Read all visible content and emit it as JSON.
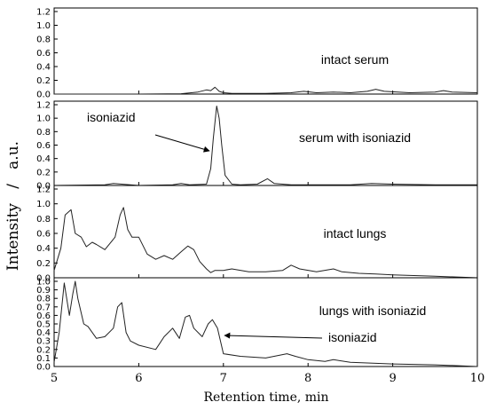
{
  "chart_data": {
    "type": "line",
    "xlabel": "Retention time, min",
    "ylabel": "Intensity   /   a.u.",
    "xlim": [
      5,
      10
    ],
    "x_ticks": [
      "5",
      "6",
      "7",
      "8",
      "9",
      "10"
    ],
    "panels": [
      {
        "label": "intact serum",
        "ylim": [
          0,
          1.2
        ],
        "y_ticks": [
          "0.0",
          "0.2",
          "0.4",
          "0.6",
          "0.8",
          "1.0",
          "1.2"
        ],
        "series": [
          {
            "x": [
              5.0,
              6.0,
              6.5,
              6.7,
              6.8,
              6.85,
              6.9,
              6.95,
              7.0,
              7.1,
              7.5,
              7.8,
              7.95,
              8.1,
              8.3,
              8.5,
              8.7,
              8.8,
              8.9,
              9.2,
              9.5,
              9.6,
              9.7,
              10.0
            ],
            "y": [
              0.0,
              0.0,
              0.005,
              0.03,
              0.06,
              0.05,
              0.1,
              0.04,
              0.02,
              0.01,
              0.01,
              0.02,
              0.04,
              0.02,
              0.03,
              0.02,
              0.04,
              0.07,
              0.04,
              0.02,
              0.03,
              0.05,
              0.03,
              0.02
            ]
          }
        ]
      },
      {
        "label": "serum with isoniazid",
        "ylim": [
          0,
          1.2
        ],
        "y_ticks": [
          "0.0",
          "0.2",
          "0.4",
          "0.6",
          "0.8",
          "1.0",
          "1.2"
        ],
        "annotation": "isoniazid",
        "series": [
          {
            "x": [
              5.0,
              5.6,
              5.7,
              5.8,
              5.9,
              6.0,
              6.4,
              6.5,
              6.6,
              6.8,
              6.85,
              6.88,
              6.92,
              6.95,
              6.98,
              7.02,
              7.1,
              7.2,
              7.4,
              7.52,
              7.6,
              7.8,
              8.0,
              8.5,
              8.75,
              9.0,
              9.5,
              10.0
            ],
            "y": [
              0.0,
              0.01,
              0.03,
              0.02,
              0.01,
              0.0,
              0.01,
              0.03,
              0.01,
              0.02,
              0.25,
              0.7,
              1.18,
              1.0,
              0.6,
              0.15,
              0.02,
              0.01,
              0.02,
              0.1,
              0.03,
              0.01,
              0.01,
              0.01,
              0.03,
              0.02,
              0.01,
              0.01
            ]
          }
        ]
      },
      {
        "label": "intact lungs",
        "ylim": [
          0,
          1.2
        ],
        "y_ticks": [
          "0.0",
          "0.2",
          "0.4",
          "0.6",
          "0.8",
          "1.0",
          "1.2"
        ],
        "series": [
          {
            "x": [
              5.0,
              5.08,
              5.13,
              5.2,
              5.25,
              5.32,
              5.38,
              5.45,
              5.5,
              5.6,
              5.72,
              5.78,
              5.82,
              5.87,
              5.92,
              6.0,
              6.1,
              6.2,
              6.3,
              6.4,
              6.5,
              6.58,
              6.65,
              6.72,
              6.8,
              6.85,
              6.9,
              7.0,
              7.1,
              7.3,
              7.5,
              7.7,
              7.8,
              7.9,
              8.1,
              8.3,
              8.4,
              8.6,
              8.8,
              9.0,
              9.5,
              10.0
            ],
            "y": [
              0.1,
              0.4,
              0.85,
              0.92,
              0.6,
              0.55,
              0.42,
              0.48,
              0.45,
              0.38,
              0.55,
              0.85,
              0.95,
              0.65,
              0.55,
              0.55,
              0.32,
              0.25,
              0.3,
              0.25,
              0.35,
              0.43,
              0.38,
              0.22,
              0.12,
              0.07,
              0.1,
              0.1,
              0.12,
              0.08,
              0.08,
              0.1,
              0.17,
              0.12,
              0.08,
              0.12,
              0.08,
              0.06,
              0.05,
              0.04,
              0.02,
              0.0
            ]
          }
        ]
      },
      {
        "label": "lungs with isoniazid",
        "ylim": [
          0,
          1.0
        ],
        "y_ticks": [
          "0.0",
          "0.1",
          "0.2",
          "0.3",
          "0.4",
          "0.5",
          "0.6",
          "0.7",
          "0.8",
          "0.9",
          "1.0"
        ],
        "annotation": "isoniazid",
        "series": [
          {
            "x": [
              5.0,
              5.06,
              5.12,
              5.18,
              5.22,
              5.25,
              5.28,
              5.35,
              5.4,
              5.5,
              5.6,
              5.7,
              5.75,
              5.8,
              5.85,
              5.9,
              6.0,
              6.2,
              6.3,
              6.4,
              6.48,
              6.55,
              6.6,
              6.65,
              6.75,
              6.82,
              6.87,
              6.93,
              7.0,
              7.2,
              7.5,
              7.75,
              7.85,
              8.0,
              8.2,
              8.3,
              8.5,
              9.0,
              9.5,
              10.0
            ],
            "y": [
              0.05,
              0.4,
              0.98,
              0.6,
              0.85,
              1.0,
              0.8,
              0.5,
              0.47,
              0.33,
              0.35,
              0.45,
              0.7,
              0.75,
              0.4,
              0.3,
              0.25,
              0.2,
              0.35,
              0.45,
              0.33,
              0.58,
              0.6,
              0.45,
              0.35,
              0.5,
              0.55,
              0.45,
              0.15,
              0.12,
              0.1,
              0.15,
              0.12,
              0.08,
              0.06,
              0.08,
              0.05,
              0.03,
              0.02,
              0.0
            ]
          }
        ]
      }
    ]
  }
}
